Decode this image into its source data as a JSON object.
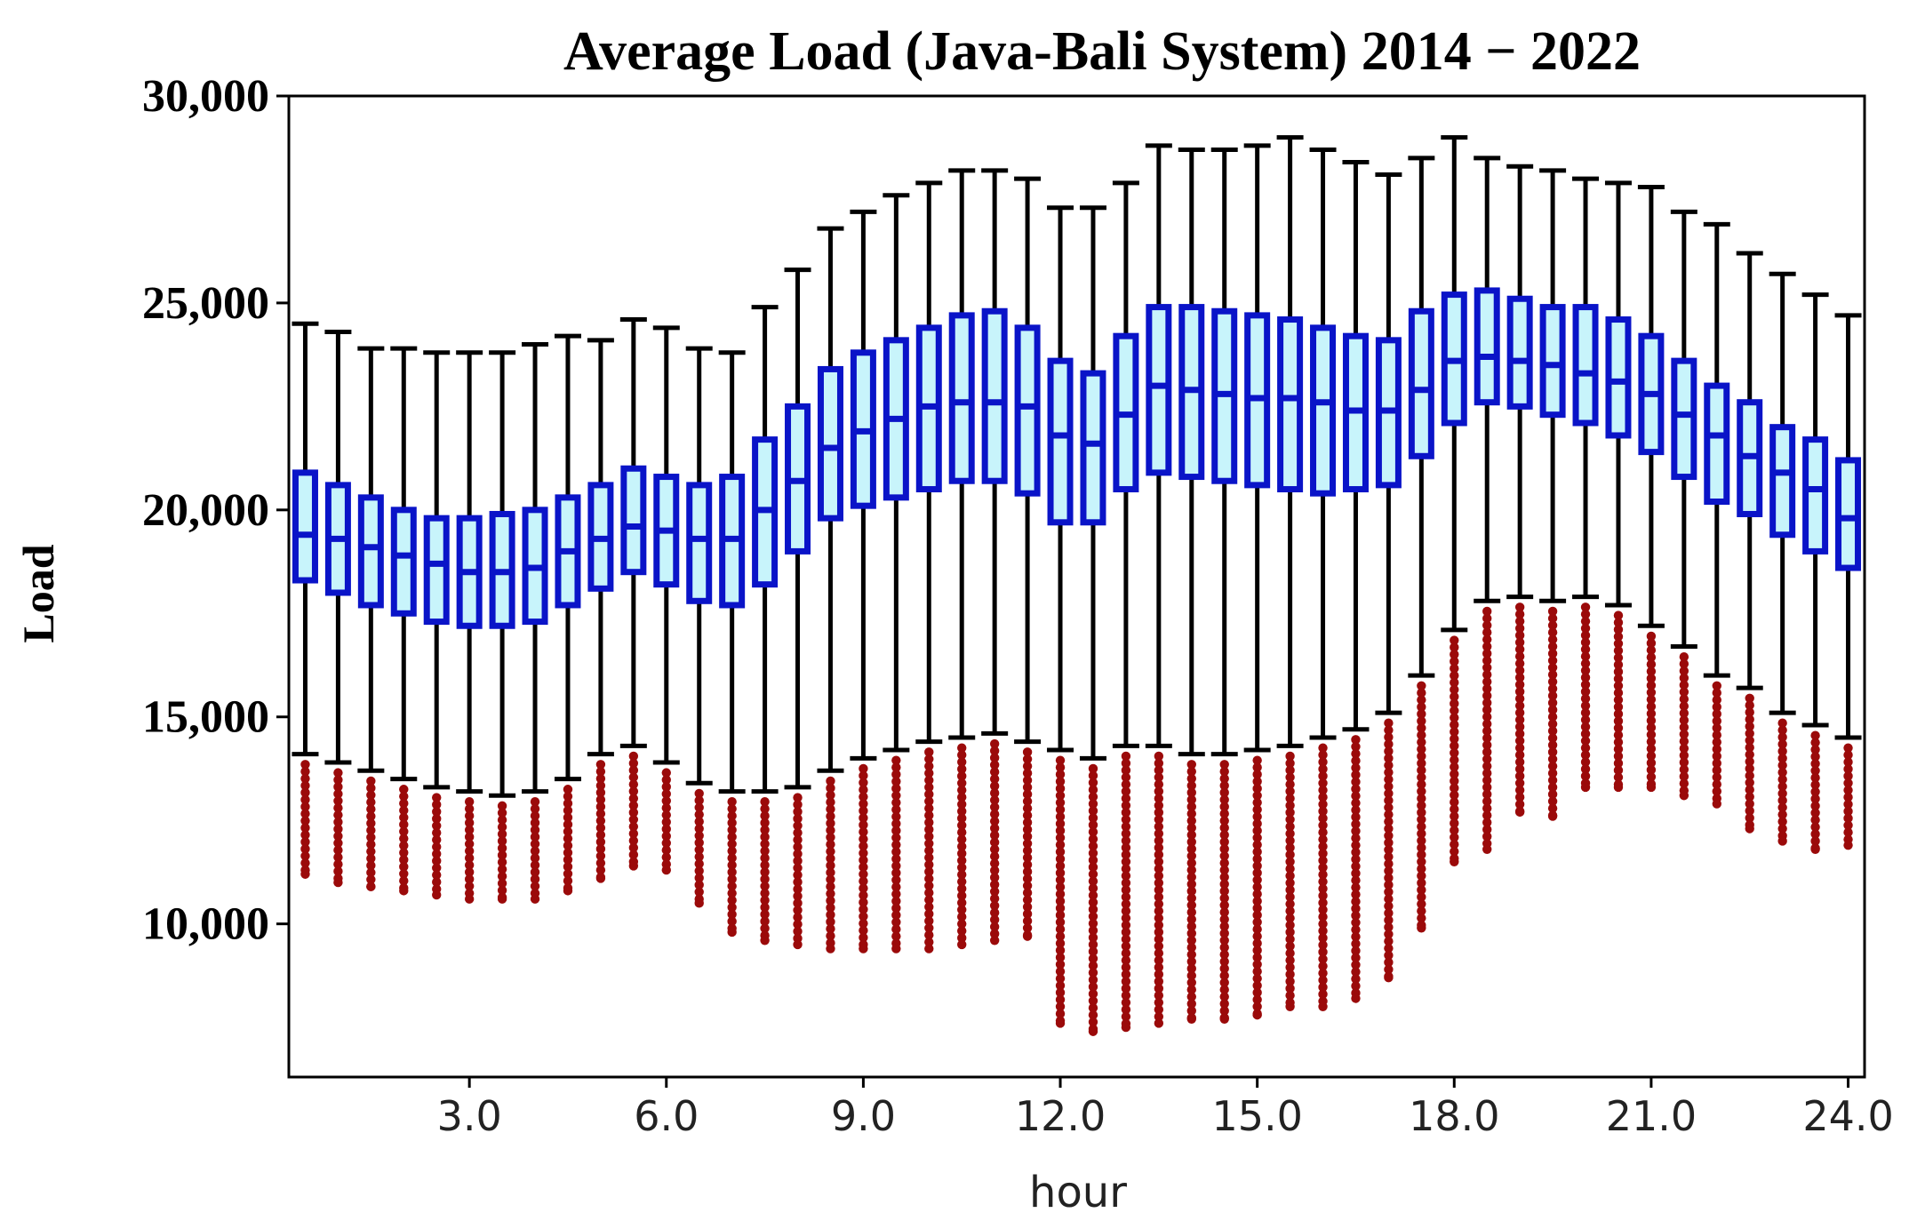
{
  "chart_data": {
    "type": "boxplot",
    "title": "Average Load (Java-Bali System) 2014 − 2022",
    "xlabel": "hour",
    "ylabel": "Load",
    "xlim": [
      0.25,
      24.25
    ],
    "ylim": [
      6300,
      30000
    ],
    "xticks": [
      3.0,
      6.0,
      9.0,
      12.0,
      15.0,
      18.0,
      21.0,
      24.0
    ],
    "xtick_labels": [
      "3.0",
      "6.0",
      "9.0",
      "12.0",
      "15.0",
      "18.0",
      "21.0",
      "24.0"
    ],
    "yticks": [
      10000,
      15000,
      20000,
      25000,
      30000
    ],
    "ytick_labels": [
      "10,000",
      "15,000",
      "20,000",
      "25,000",
      "30,000"
    ],
    "grid": false,
    "colors": {
      "box_edge": "#0a14c8",
      "box_fill": "#c8f4fb",
      "whisker": "#000000",
      "median": "#0a14c8",
      "outlier": "#9b0a0a"
    },
    "hours": [
      0.5,
      1.0,
      1.5,
      2.0,
      2.5,
      3.0,
      3.5,
      4.0,
      4.5,
      5.0,
      5.5,
      6.0,
      6.5,
      7.0,
      7.5,
      8.0,
      8.5,
      9.0,
      9.5,
      10.0,
      10.5,
      11.0,
      11.5,
      12.0,
      12.5,
      13.0,
      13.5,
      14.0,
      14.5,
      15.0,
      15.5,
      16.0,
      16.5,
      17.0,
      17.5,
      18.0,
      18.5,
      19.0,
      19.5,
      20.0,
      20.5,
      21.0,
      21.5,
      22.0,
      22.5,
      23.0,
      23.5,
      24.0
    ],
    "whisker_high": [
      24500,
      24300,
      23900,
      23900,
      23800,
      23800,
      23800,
      24000,
      24200,
      24100,
      24600,
      24400,
      23900,
      23800,
      24900,
      25800,
      26800,
      27200,
      27600,
      27900,
      28200,
      28200,
      28000,
      27300,
      27300,
      27900,
      28800,
      28700,
      28700,
      28800,
      29000,
      28700,
      28400,
      28100,
      28500,
      29000,
      28500,
      28300,
      28200,
      28000,
      27900,
      27800,
      27200,
      26900,
      26200,
      25700,
      25200,
      24700
    ],
    "q3": [
      20900,
      20600,
      20300,
      20000,
      19800,
      19800,
      19900,
      20000,
      20300,
      20600,
      21000,
      20800,
      20600,
      20800,
      21700,
      22500,
      23400,
      23800,
      24100,
      24400,
      24700,
      24800,
      24400,
      23600,
      23300,
      24200,
      24900,
      24900,
      24800,
      24700,
      24600,
      24400,
      24200,
      24100,
      24800,
      25200,
      25300,
      25100,
      24900,
      24900,
      24600,
      24200,
      23600,
      23000,
      22600,
      22000,
      21700,
      21200
    ],
    "median": [
      19400,
      19300,
      19100,
      18900,
      18700,
      18500,
      18500,
      18600,
      19000,
      19300,
      19600,
      19500,
      19300,
      19300,
      20000,
      20700,
      21500,
      21900,
      22200,
      22500,
      22600,
      22600,
      22500,
      21800,
      21600,
      22300,
      23000,
      22900,
      22800,
      22700,
      22700,
      22600,
      22400,
      22400,
      22900,
      23600,
      23700,
      23600,
      23500,
      23300,
      23100,
      22800,
      22300,
      21800,
      21300,
      20900,
      20500,
      19800
    ],
    "q1": [
      18300,
      18000,
      17700,
      17500,
      17300,
      17200,
      17200,
      17300,
      17700,
      18100,
      18500,
      18200,
      17800,
      17700,
      18200,
      19000,
      19800,
      20100,
      20300,
      20500,
      20700,
      20700,
      20400,
      19700,
      19700,
      20500,
      20900,
      20800,
      20700,
      20600,
      20500,
      20400,
      20500,
      20600,
      21300,
      22100,
      22600,
      22500,
      22300,
      22100,
      21800,
      21400,
      20800,
      20200,
      19900,
      19400,
      19000,
      18600
    ],
    "whisker_low": [
      14100,
      13900,
      13700,
      13500,
      13300,
      13200,
      13100,
      13200,
      13500,
      14100,
      14300,
      13900,
      13400,
      13200,
      13200,
      13300,
      13700,
      14000,
      14200,
      14400,
      14500,
      14600,
      14400,
      14200,
      14000,
      14300,
      14300,
      14100,
      14100,
      14200,
      14300,
      14500,
      14700,
      15100,
      16000,
      17100,
      17800,
      17900,
      17800,
      17900,
      17700,
      17200,
      16700,
      16000,
      15700,
      15100,
      14800,
      14500
    ],
    "outlier_min": [
      11200,
      11000,
      10900,
      10800,
      10700,
      10600,
      10600,
      10600,
      10800,
      11100,
      11400,
      11300,
      10500,
      9800,
      9600,
      9500,
      9400,
      9400,
      9400,
      9400,
      9500,
      9600,
      9700,
      7600,
      7400,
      7500,
      7600,
      7700,
      7700,
      7800,
      8000,
      8000,
      8200,
      8700,
      9900,
      11500,
      11800,
      12700,
      12600,
      13300,
      13300,
      13300,
      13100,
      12900,
      12300,
      12000,
      11800,
      11900
    ]
  }
}
